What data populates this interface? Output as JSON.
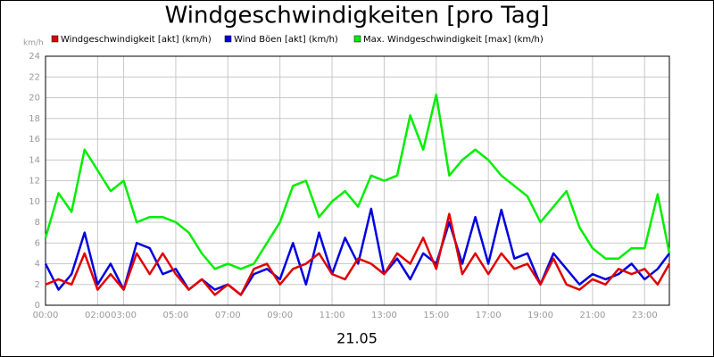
{
  "chart_data": {
    "type": "line",
    "title": "Windgeschwindigkeiten [pro Tag]",
    "y_label": "km/h",
    "x_label": "21.05",
    "x": [
      0,
      0.5,
      1,
      1.5,
      2,
      2.5,
      3,
      3.5,
      4,
      4.5,
      5,
      5.5,
      6,
      6.5,
      7,
      7.5,
      8,
      8.5,
      9,
      9.5,
      10,
      10.5,
      11,
      11.5,
      12,
      12.5,
      13,
      13.5,
      14,
      14.5,
      15,
      15.5,
      16,
      16.5,
      17,
      17.5,
      18,
      18.5,
      19,
      19.5,
      20,
      20.5,
      21,
      21.5,
      22,
      22.5,
      23,
      23.5,
      23.95
    ],
    "series": [
      {
        "name": "Windgeschwindigkeit [akt] (km/h)",
        "color": "#e00000",
        "values": [
          2,
          2.5,
          2,
          5,
          1.5,
          3,
          1.5,
          5,
          3,
          5,
          3,
          1.5,
          2.5,
          1,
          2,
          1,
          3.5,
          4,
          2,
          3.5,
          4,
          5,
          3,
          2.5,
          4.5,
          4,
          3,
          5,
          4,
          6.5,
          3.5,
          8.8,
          3,
          5,
          3,
          5,
          3.5,
          4,
          2,
          4.5,
          2,
          1.5,
          2.5,
          2,
          3.5,
          3,
          3.5,
          2,
          4
        ]
      },
      {
        "name": "Wind Böen [akt] (km/h)",
        "color": "#0000e0",
        "values": [
          4,
          1.5,
          3,
          7,
          2,
          4,
          1.5,
          6,
          5.5,
          3,
          3.5,
          1.5,
          2.5,
          1.5,
          2,
          1,
          3,
          3.5,
          2.5,
          6,
          2,
          7,
          3,
          6.5,
          4,
          9.3,
          3,
          4.5,
          2.5,
          5,
          4,
          8,
          4,
          8.5,
          4,
          9.2,
          4.5,
          5,
          2,
          5,
          3.5,
          2,
          3,
          2.5,
          3,
          4,
          2.5,
          3.5,
          5
        ]
      },
      {
        "name": "Max. Windgeschwindigkeit [max] (km/h)",
        "color": "#00ee00",
        "values": [
          6.5,
          10.8,
          9,
          15,
          13,
          11,
          12,
          8,
          8.5,
          8.5,
          8,
          7,
          5,
          3.5,
          4,
          3.5,
          4,
          6,
          8,
          11.5,
          12,
          8.5,
          10,
          11,
          9.5,
          12.5,
          12,
          12.5,
          18.3,
          15,
          20.3,
          12.5,
          14,
          15,
          14,
          12.5,
          11.5,
          10.5,
          8,
          9.5,
          11,
          7.5,
          5.5,
          4.5,
          4.5,
          5.5,
          5.5,
          10.7,
          5
        ]
      }
    ],
    "xlim": [
      0,
      23.95
    ],
    "xticks": [
      {
        "value": 0,
        "label": "00:00"
      },
      {
        "value": 2,
        "label": "02:00"
      },
      {
        "value": 3,
        "label": "03:00"
      },
      {
        "value": 5,
        "label": "05:00"
      },
      {
        "value": 7,
        "label": "07:00"
      },
      {
        "value": 9,
        "label": "09:00"
      },
      {
        "value": 11,
        "label": "11:00"
      },
      {
        "value": 13,
        "label": "13:00"
      },
      {
        "value": 15,
        "label": "15:00"
      },
      {
        "value": 17,
        "label": "17:00"
      },
      {
        "value": 19,
        "label": "19:00"
      },
      {
        "value": 21,
        "label": "21:00"
      },
      {
        "value": 23,
        "label": "23:00"
      }
    ],
    "ylim": [
      0,
      24
    ],
    "yticks": [
      0,
      2,
      4,
      6,
      8,
      10,
      12,
      14,
      16,
      18,
      20,
      22,
      24
    ],
    "grid": true
  }
}
